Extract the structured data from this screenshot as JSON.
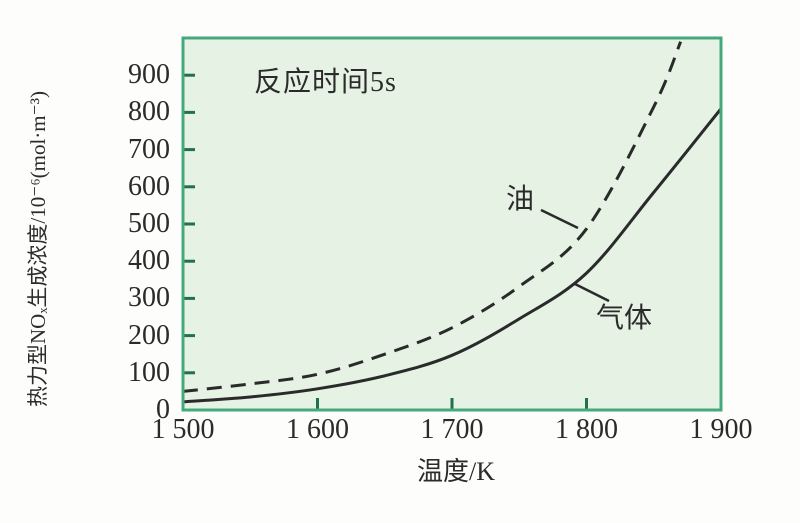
{
  "colors": {
    "page_background": "#fdfdfc",
    "plot_fill": "#e5f2e4",
    "plot_border": "#45a97e",
    "tick": "#23704e",
    "curve": "#2a2a2a",
    "text": "#2b2b2b"
  },
  "chart_data": {
    "type": "line",
    "title": "",
    "xlabel": "温度/K",
    "ylabel": "热力型NOₓ生成浓度/10⁻⁶(mol·m⁻³)",
    "annotation": "反应时间5s",
    "grid": false,
    "legend_position": "inline-curve-labels",
    "xlim": [
      1500,
      1900
    ],
    "ylim": [
      0,
      1000
    ],
    "x_ticks": [
      {
        "value": 1500,
        "label": "1 500"
      },
      {
        "value": 1600,
        "label": "1 600"
      },
      {
        "value": 1700,
        "label": "1 700"
      },
      {
        "value": 1800,
        "label": "1 800"
      },
      {
        "value": 1900,
        "label": "1 900"
      }
    ],
    "y_ticks": [
      {
        "value": 0,
        "label": "0"
      },
      {
        "value": 100,
        "label": "100"
      },
      {
        "value": 200,
        "label": "200"
      },
      {
        "value": 300,
        "label": "300"
      },
      {
        "value": 400,
        "label": "400"
      },
      {
        "value": 500,
        "label": "500"
      },
      {
        "value": 600,
        "label": "600"
      },
      {
        "value": 700,
        "label": "700"
      },
      {
        "value": 800,
        "label": "800"
      },
      {
        "value": 900,
        "label": "900"
      }
    ],
    "series": [
      {
        "name": "油",
        "line_style": "dashed",
        "x": [
          1500,
          1550,
          1600,
          1650,
          1700,
          1750,
          1800,
          1850,
          1870
        ],
        "values": [
          50,
          70,
          96,
          150,
          221,
          332,
          487,
          815,
          990
        ]
      },
      {
        "name": "气体",
        "line_style": "solid",
        "x": [
          1500,
          1550,
          1600,
          1650,
          1700,
          1750,
          1800,
          1850,
          1900
        ],
        "values": [
          22,
          35,
          57,
          92,
          147,
          245,
          368,
          585,
          810
        ]
      }
    ]
  }
}
